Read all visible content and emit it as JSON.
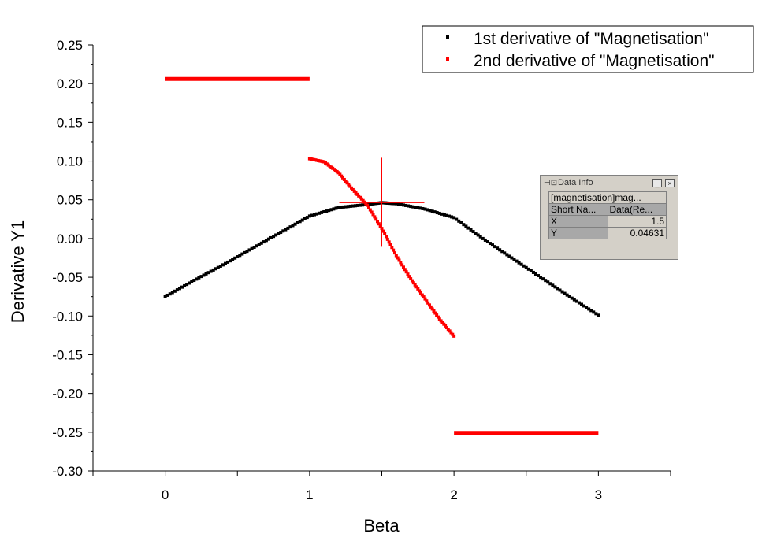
{
  "chart_data": {
    "type": "scatter",
    "xlabel": "Beta",
    "ylabel": "Derivative Y1",
    "xlim": [
      -0.5,
      3.5
    ],
    "ylim": [
      -0.3,
      0.25
    ],
    "x_ticks": [
      "0",
      "1",
      "2",
      "3"
    ],
    "y_ticks": [
      "0.25",
      "0.20",
      "0.15",
      "0.10",
      "0.05",
      "0.00",
      "-0.05",
      "-0.10",
      "-0.15",
      "-0.20",
      "-0.25",
      "-0.30"
    ],
    "legend_position": "top-right",
    "grid": false,
    "series": [
      {
        "name": "1st derivative of \"Magnetisation\"",
        "color": "#000000",
        "x": [
          0.0,
          0.2,
          0.4,
          0.6,
          0.8,
          1.0,
          1.2,
          1.4,
          1.5,
          1.6,
          1.8,
          2.0,
          2.2,
          2.4,
          2.6,
          2.8,
          3.0
        ],
        "y": [
          -0.075,
          -0.054,
          -0.034,
          -0.013,
          0.008,
          0.029,
          0.04,
          0.044,
          0.0463,
          0.045,
          0.038,
          0.027,
          0.0,
          -0.025,
          -0.05,
          -0.075,
          -0.099
        ]
      },
      {
        "name": "2nd derivative of \"Magnetisation\"",
        "color": "#ff0000",
        "segments": [
          {
            "x": [
              0.0,
              1.0
            ],
            "y": [
              0.206,
              0.206
            ]
          },
          {
            "x": [
              1.0,
              1.1,
              1.2,
              1.3,
              1.4,
              1.5,
              1.6,
              1.7,
              1.8,
              1.9,
              2.0
            ],
            "y": [
              0.103,
              0.099,
              0.085,
              0.063,
              0.043,
              0.013,
              -0.022,
              -0.052,
              -0.078,
              -0.104,
              -0.126
            ]
          },
          {
            "x": [
              2.0,
              3.0
            ],
            "y": [
              -0.251,
              -0.251
            ]
          }
        ]
      }
    ],
    "cursor": {
      "x": 1.5,
      "y": 0.04631
    }
  },
  "data_info": {
    "title": "Data Info",
    "pin_icon": "pin-icon",
    "minimize": "_",
    "close": "×",
    "dataset": "[magnetisation]mag...",
    "header_col1": "Short Na...",
    "header_col2": "Data(Re...",
    "rows": [
      {
        "label": "X",
        "value": "1.5"
      },
      {
        "label": "Y",
        "value": "0.04631"
      }
    ]
  }
}
